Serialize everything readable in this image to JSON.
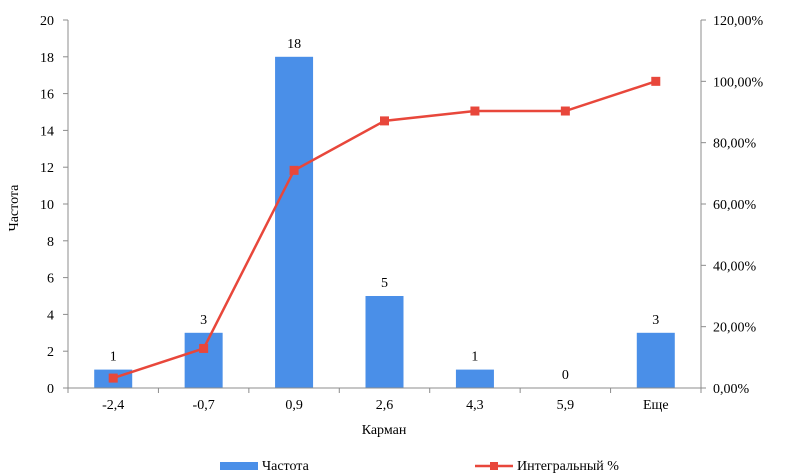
{
  "chart_data": {
    "type": "bar",
    "categories": [
      "-2,4",
      "-0,7",
      "0,9",
      "2,6",
      "4,3",
      "5,9",
      "Еще"
    ],
    "series": [
      {
        "name": "Частота",
        "type": "bar",
        "axis": "left",
        "values": [
          1,
          3,
          18,
          5,
          1,
          0,
          3
        ],
        "color": "#4a8fe8"
      },
      {
        "name": "Интегральный %",
        "type": "line",
        "axis": "right",
        "values": [
          3.23,
          12.9,
          70.97,
          87.1,
          90.32,
          90.32,
          100.0
        ],
        "color": "#e8473b"
      }
    ],
    "data_labels": [
      "1",
      "3",
      "18",
      "5",
      "1",
      "0",
      "3"
    ],
    "xlabel": "Карман",
    "ylabel": "Частота",
    "ylim": [
      0,
      20
    ],
    "y2lim": [
      0,
      120
    ],
    "yticks": [
      "0",
      "2",
      "4",
      "6",
      "8",
      "10",
      "12",
      "14",
      "16",
      "18",
      "20"
    ],
    "y2ticks": [
      "0,00%",
      "20,00%",
      "40,00%",
      "60,00%",
      "80,00%",
      "100,00%",
      "120,00%"
    ],
    "legend_position": "bottom",
    "grid": false
  }
}
